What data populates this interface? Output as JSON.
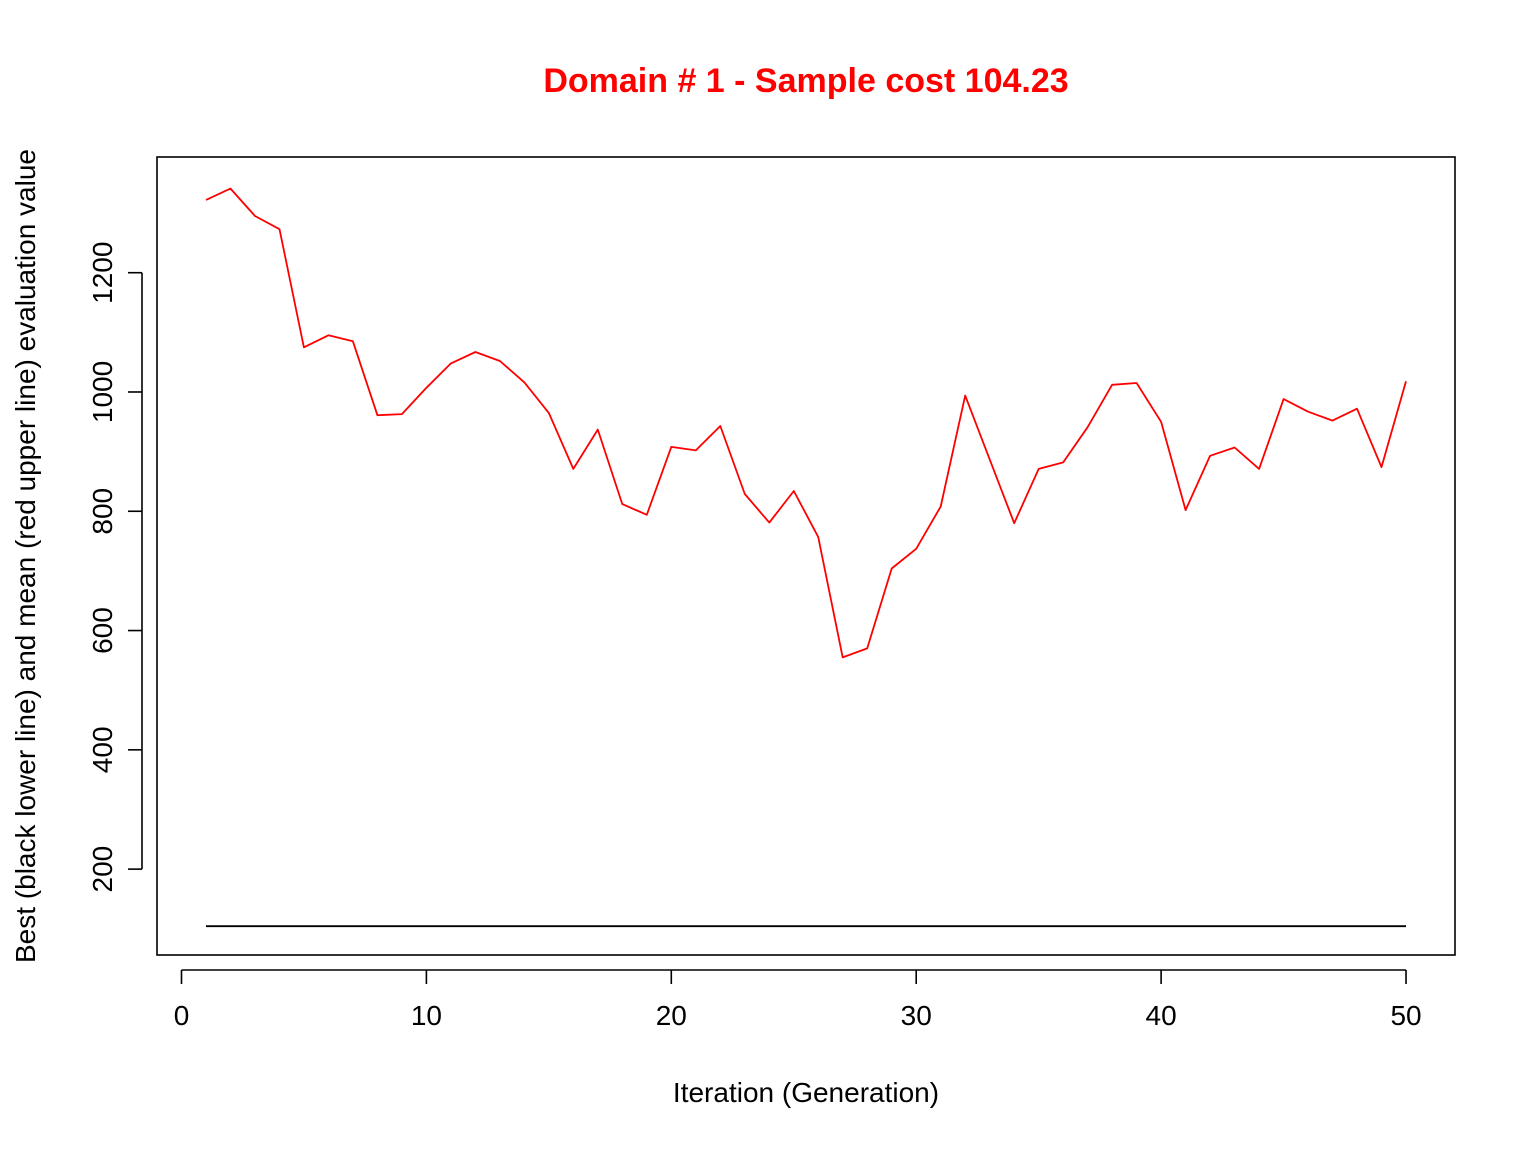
{
  "chart_data": {
    "type": "line",
    "title": "Domain # 1  - Sample cost 104.23",
    "xlabel": "Iteration (Generation)",
    "ylabel": "Best (black lower line) and mean (red upper line) evaluation value",
    "xlim": [
      -1,
      52
    ],
    "ylim": [
      56,
      1394
    ],
    "x_ticks": [
      0,
      10,
      20,
      30,
      40,
      50
    ],
    "y_ticks": [
      200,
      400,
      600,
      800,
      1000,
      1200
    ],
    "x": [
      1,
      2,
      3,
      4,
      5,
      6,
      7,
      8,
      9,
      10,
      11,
      12,
      13,
      14,
      15,
      16,
      17,
      18,
      19,
      20,
      21,
      22,
      23,
      24,
      25,
      26,
      27,
      28,
      29,
      30,
      31,
      32,
      33,
      34,
      35,
      36,
      37,
      38,
      39,
      40,
      41,
      42,
      43,
      44,
      45,
      46,
      47,
      48,
      49,
      50
    ],
    "series": [
      {
        "values": [
          104.23,
          104.23,
          104.23,
          104.23,
          104.23,
          104.23,
          104.23,
          104.23,
          104.23,
          104.23,
          104.23,
          104.23,
          104.23,
          104.23,
          104.23,
          104.23,
          104.23,
          104.23,
          104.23,
          104.23,
          104.23,
          104.23,
          104.23,
          104.23,
          104.23,
          104.23,
          104.23,
          104.23,
          104.23,
          104.23,
          104.23,
          104.23,
          104.23,
          104.23,
          104.23,
          104.23,
          104.23,
          104.23,
          104.23,
          104.23,
          104.23,
          104.23,
          104.23,
          104.23,
          104.23,
          104.23,
          104.23,
          104.23,
          104.23,
          104.23
        ],
        "color": "#000000"
      },
      {
        "values": [
          1322,
          1341,
          1295,
          1273,
          1075,
          1095,
          1085,
          961,
          963,
          1007,
          1048,
          1067,
          1052,
          1016,
          965,
          871,
          937,
          812,
          794,
          908,
          902,
          943,
          829,
          781,
          834,
          757,
          555,
          570,
          704,
          737,
          808,
          994,
          887,
          780,
          871,
          882,
          941,
          1012,
          1015,
          950,
          802,
          893,
          907,
          871,
          988,
          967,
          952,
          972,
          874,
          1018
        ],
        "color": "#ff0000"
      }
    ],
    "grid": false,
    "legend": "none",
    "title_color": "#ff0000"
  }
}
